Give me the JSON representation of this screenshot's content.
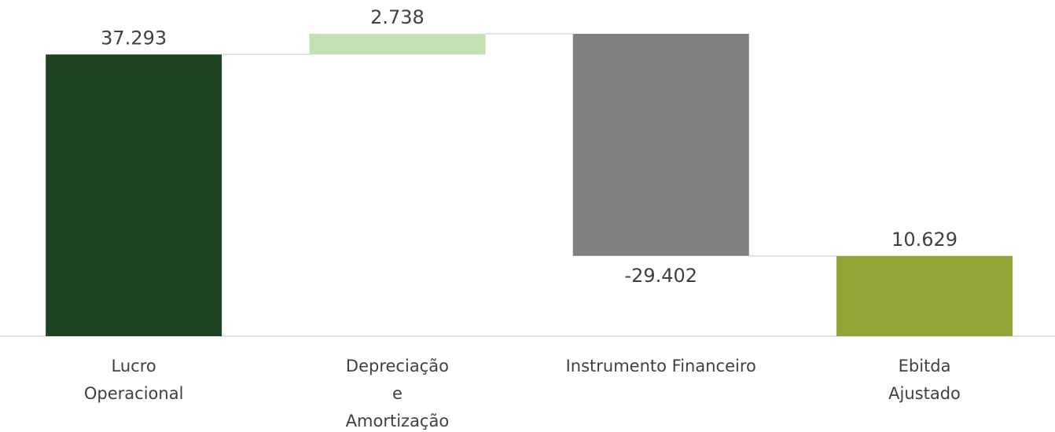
{
  "chart_data": {
    "type": "waterfall",
    "categories": [
      "Lucro\nOperacional",
      "Depreciação\ne\nAmortização",
      "Instrumento Financeiro",
      "Ebitda\nAjustado"
    ],
    "measure": [
      "absolute",
      "relative",
      "relative",
      "total"
    ],
    "values": [
      37293,
      2738,
      -29402,
      10629
    ],
    "value_labels": [
      "37.293",
      "2.738",
      "-29.402",
      "10.629"
    ],
    "colors": [
      "#1e4424",
      "#c5e0b4",
      "#7f7f7f",
      "#92a637"
    ]
  }
}
